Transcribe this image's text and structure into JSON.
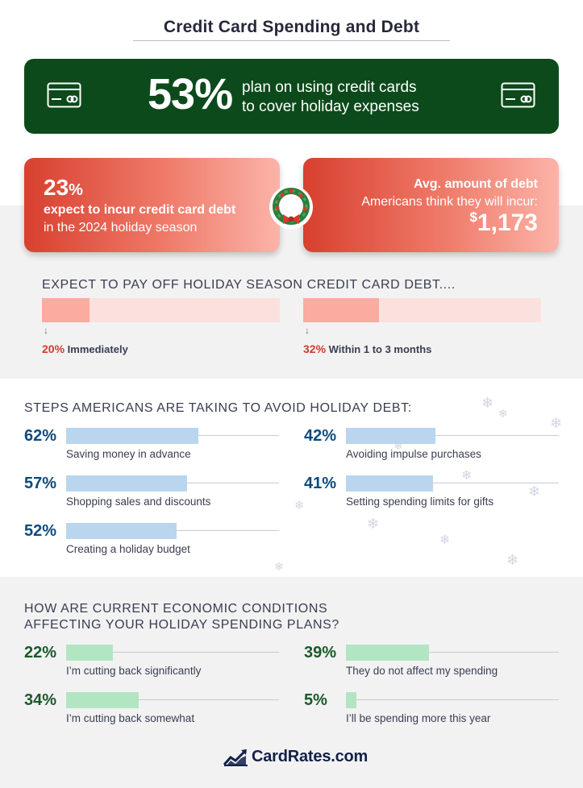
{
  "title": "Credit Card Spending and Debt",
  "banner": {
    "percent": "53%",
    "line1": "plan on using credit cards",
    "line2": "to cover holiday expenses",
    "left_icon": "credit-card-icon",
    "right_icon": "credit-card-icon"
  },
  "debt_expect": {
    "percent_num": "23",
    "percent_sym": "%",
    "line1": "expect to incur credit card debt",
    "line2": "in the 2024 holiday season"
  },
  "avg_debt": {
    "line1": "Avg. amount of debt",
    "line2": "Americans think they will incur:",
    "currency": "$",
    "amount": "1,173"
  },
  "wreath_icon": "wreath-icon",
  "payoff": {
    "heading": "EXPECT TO PAY OFF HOLIDAY SEASON CREDIT CARD DEBT....",
    "items": [
      {
        "pct": "20%",
        "label": "Immediately",
        "value": 20
      },
      {
        "pct": "32%",
        "label": "Within 1 to 3 months",
        "value": 32
      }
    ]
  },
  "steps": {
    "heading": "STEPS AMERICANS ARE TAKING TO AVOID HOLIDAY DEBT:",
    "items": [
      {
        "pct": "62%",
        "label": "Saving money in advance",
        "value": 62
      },
      {
        "pct": "57%",
        "label": "Shopping sales and discounts",
        "value": 57
      },
      {
        "pct": "52%",
        "label": "Creating a holiday budget",
        "value": 52
      },
      {
        "pct": "42%",
        "label": "Avoiding impulse purchases",
        "value": 42
      },
      {
        "pct": "41%",
        "label": "Setting spending limits for gifts",
        "value": 41
      }
    ]
  },
  "economy": {
    "heading_line1": "HOW ARE CURRENT ECONOMIC CONDITIONS",
    "heading_line2": "AFFECTING YOUR HOLIDAY SPENDING PLANS?",
    "items": [
      {
        "pct": "22%",
        "label": "I’m cutting back significantly",
        "value": 22
      },
      {
        "pct": "34%",
        "label": "I’m cutting back somewhat",
        "value": 34
      },
      {
        "pct": "39%",
        "label": "They do not affect my spending",
        "value": 39
      },
      {
        "pct": "5%",
        "label": "I’ll be spending more this year",
        "value": 5
      }
    ]
  },
  "logo": {
    "text": "CardRates.com",
    "icon": "chart-trend-logo-icon"
  },
  "colors": {
    "dark_green": "#0d4a1b",
    "red_gradient_start": "#d8402f",
    "salmon_bar": "#fbab9f",
    "blue_pct": "#0c4a7d",
    "blue_bar": "#b9d6ee",
    "green_pct": "#1a5a26",
    "mint_bar": "#b2e6c3"
  }
}
